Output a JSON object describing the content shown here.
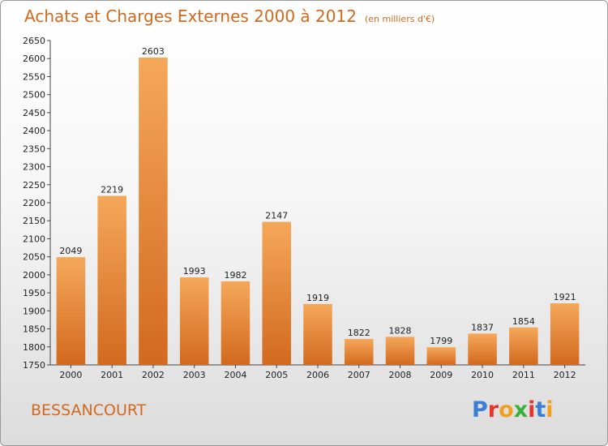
{
  "header": {
    "title": "Achats et Charges Externes 2000 à 2012",
    "unit": "(en milliers d'€)"
  },
  "footer": {
    "place": "BESSANCOURT",
    "logo": "Proxiti"
  },
  "colors": {
    "title": "#d2691e",
    "bar_light": "#f5a85a",
    "bar_dark": "#d2691e",
    "logo_letters": [
      "#3a7fd5",
      "#e8342a",
      "#f0a020",
      "#3ab03a",
      "#e8342a",
      "#3a7fd5",
      "#f0a020"
    ]
  },
  "chart_data": {
    "type": "bar",
    "title": "Achats et Charges Externes 2000 à 2012",
    "subtitle": "(en milliers d'€)",
    "categories": [
      "2000",
      "2001",
      "2002",
      "2003",
      "2004",
      "2005",
      "2006",
      "2007",
      "2008",
      "2009",
      "2010",
      "2011",
      "2012"
    ],
    "values": [
      2049,
      2219,
      2603,
      1993,
      1982,
      2147,
      1919,
      1822,
      1828,
      1799,
      1837,
      1854,
      1921
    ],
    "ylim": [
      1750,
      2650
    ],
    "ytick_step": 50,
    "grid": false,
    "xlabel": "",
    "ylabel": ""
  }
}
